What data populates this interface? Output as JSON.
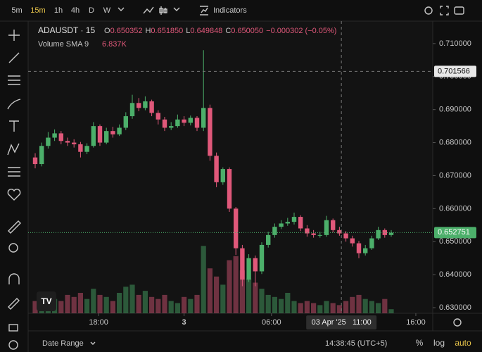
{
  "toolbar": {
    "intervals": [
      "5m",
      "15m",
      "1h",
      "4h",
      "D",
      "W"
    ],
    "indicators": "Indicators"
  },
  "chart_data": {
    "type": "candlestick",
    "symbol": "ADAUSDT · 15",
    "ohlc": [
      {
        "key": "O",
        "value": "0.650352"
      },
      {
        "key": "H",
        "value": "0.651850"
      },
      {
        "key": "L",
        "value": "0.649848"
      },
      {
        "key": "C",
        "value": "0.650050"
      }
    ],
    "change": "−0.000302 (−0.05%)",
    "volume_indicator": {
      "name": "Volume SMA 9",
      "value": "6.837K"
    },
    "up_color": "#4caf6a",
    "down_color": "#e0587a",
    "open": [
      0.6755,
      0.6735,
      0.679,
      0.6815,
      0.6828,
      0.6805,
      0.68,
      0.6795,
      0.6772,
      0.679,
      0.685,
      0.68,
      0.6835,
      0.6825,
      0.6845,
      0.688,
      0.692,
      0.6905,
      0.6925,
      0.689,
      0.687,
      0.6845,
      0.685,
      0.687,
      0.686,
      0.6875,
      0.6845,
      0.6905,
      0.676,
      0.668,
      0.672,
      0.66,
      0.648,
      0.6385,
      0.645,
      0.641,
      0.649,
      0.652,
      0.6545,
      0.6555,
      0.656,
      0.6575,
      0.654,
      0.6525,
      0.652,
      0.652,
      0.6565,
      0.6535,
      0.6525,
      0.651,
      0.6495,
      0.6465,
      0.648,
      0.651,
      0.6535,
      0.652
    ],
    "high": [
      0.6768,
      0.68,
      0.6832,
      0.684,
      0.6835,
      0.6815,
      0.681,
      0.6802,
      0.6798,
      0.6862,
      0.6855,
      0.6845,
      0.6848,
      0.6855,
      0.6892,
      0.6945,
      0.6935,
      0.694,
      0.693,
      0.6898,
      0.6878,
      0.6862,
      0.6885,
      0.688,
      0.6882,
      0.688,
      0.708,
      0.6915,
      0.677,
      0.6725,
      0.6725,
      0.6605,
      0.649,
      0.6462,
      0.6458,
      0.6498,
      0.653,
      0.6555,
      0.6565,
      0.6572,
      0.6588,
      0.658,
      0.655,
      0.6535,
      0.653,
      0.6578,
      0.657,
      0.6545,
      0.6532,
      0.6518,
      0.6502,
      0.649,
      0.6518,
      0.6545,
      0.654,
      0.6535
    ],
    "low": [
      0.6722,
      0.6728,
      0.6782,
      0.6805,
      0.6795,
      0.679,
      0.6785,
      0.6755,
      0.6765,
      0.6785,
      0.679,
      0.6795,
      0.6815,
      0.682,
      0.6838,
      0.6872,
      0.6895,
      0.6898,
      0.688,
      0.6855,
      0.6835,
      0.6838,
      0.6845,
      0.685,
      0.6852,
      0.6835,
      0.6835,
      0.6745,
      0.6665,
      0.6672,
      0.659,
      0.646,
      0.6365,
      0.6378,
      0.6365,
      0.6402,
      0.6482,
      0.6512,
      0.6538,
      0.6548,
      0.6552,
      0.6532,
      0.6515,
      0.6512,
      0.6512,
      0.6515,
      0.6528,
      0.6518,
      0.65,
      0.6485,
      0.645,
      0.6458,
      0.6475,
      0.6505,
      0.6512,
      0.6515
    ],
    "close": [
      0.6735,
      0.679,
      0.6815,
      0.6828,
      0.6805,
      0.68,
      0.6795,
      0.6772,
      0.679,
      0.685,
      0.68,
      0.6835,
      0.6825,
      0.6845,
      0.688,
      0.692,
      0.6905,
      0.6925,
      0.689,
      0.687,
      0.6845,
      0.685,
      0.687,
      0.686,
      0.6875,
      0.6845,
      0.6905,
      0.676,
      0.668,
      0.672,
      0.66,
      0.648,
      0.6385,
      0.645,
      0.641,
      0.649,
      0.652,
      0.6545,
      0.6555,
      0.656,
      0.6575,
      0.654,
      0.6525,
      0.652,
      0.652,
      0.6565,
      0.6535,
      0.6525,
      0.651,
      0.6495,
      0.6465,
      0.648,
      0.651,
      0.6535,
      0.652,
      0.6527
    ],
    "volume": [
      6,
      8,
      5,
      7,
      6,
      9,
      8,
      10,
      7,
      12,
      9,
      8,
      6,
      10,
      13,
      14,
      9,
      11,
      8,
      7,
      9,
      6,
      5,
      8,
      7,
      9,
      33,
      22,
      18,
      14,
      26,
      28,
      21,
      17,
      15,
      12,
      9,
      8,
      7,
      10,
      6,
      5,
      6,
      5,
      4,
      6,
      5,
      4,
      6,
      8,
      9,
      7,
      6,
      5,
      7,
      2
    ],
    "ylim": [
      0.6283,
      0.7168
    ],
    "yticks": [
      {
        "value": 0.71,
        "label": "0.710000"
      },
      {
        "value": 0.7,
        "label": "0.700000"
      },
      {
        "value": 0.69,
        "label": "0.690000"
      },
      {
        "value": 0.68,
        "label": "0.680000"
      },
      {
        "value": 0.67,
        "label": "0.670000"
      },
      {
        "value": 0.66,
        "label": "0.660000"
      },
      {
        "value": 0.65,
        "label": "0.650000"
      },
      {
        "value": 0.64,
        "label": "0.640000"
      },
      {
        "value": 0.63,
        "label": "0.630000"
      }
    ],
    "xticks": [
      {
        "value": 9.8,
        "label": "18:00"
      },
      {
        "value": 23,
        "label": "3"
      },
      {
        "value": 36.5,
        "label": "06:00"
      },
      {
        "value": 58.8,
        "label": "16:00"
      }
    ],
    "last_price": {
      "value": 0.652751,
      "label": "0.652751"
    },
    "crosshair": {
      "index": 47.3,
      "price": {
        "value": 0.701566,
        "label": "0.701566"
      },
      "time_label": "03 Apr '25   11:00"
    }
  },
  "bottom_bar": {
    "date_range": "Date Range",
    "clock": "14:38:45 (UTC+5)",
    "buttons": [
      "%",
      "log",
      "auto"
    ]
  }
}
